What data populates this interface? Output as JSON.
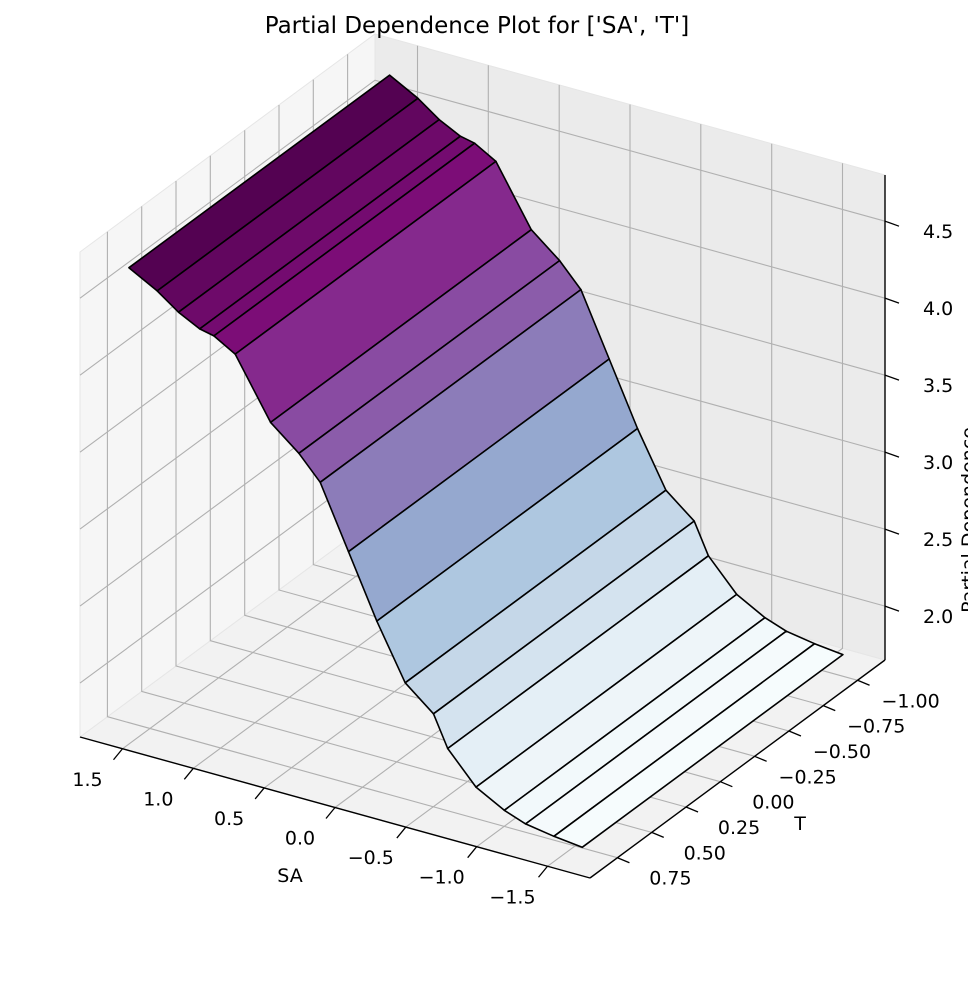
{
  "chart_data": {
    "type": "surface",
    "title": "Partial Dependence Plot for ['SA', 'T']",
    "xlabel": "SA",
    "ylabel": "T",
    "zlabel": "Partial Dependence",
    "xlim": [
      1.8,
      -1.8
    ],
    "ylim": [
      0.95,
      -1.2
    ],
    "zlim": [
      1.65,
      4.8
    ],
    "x_ticks": [
      1.5,
      1.0,
      0.5,
      0.0,
      -0.5,
      -1.0,
      -1.5
    ],
    "x_tick_labels": [
      "1.5",
      "1.0",
      "0.5",
      "0.0",
      "−0.5",
      "−1.0",
      "−1.5"
    ],
    "y_ticks": [
      -1.0,
      -0.75,
      -0.5,
      -0.25,
      0.0,
      0.25,
      0.5,
      0.75
    ],
    "y_tick_labels": [
      "−1.00",
      "−0.75",
      "−0.50",
      "−0.25",
      "0.00",
      "0.25",
      "0.50",
      "0.75"
    ],
    "z_ticks": [
      2.0,
      2.5,
      3.0,
      3.5,
      4.0,
      4.5
    ],
    "z_tick_labels": [
      "2.0",
      "2.5",
      "3.0",
      "3.5",
      "4.0",
      "4.5"
    ],
    "sa_grid": [
      1.6,
      1.4,
      1.25,
      1.1,
      1.0,
      0.85,
      0.6,
      0.4,
      0.25,
      0.05,
      -0.15,
      -0.35,
      -0.55,
      -0.65,
      -0.85,
      -1.05,
      -1.2,
      -1.4,
      -1.6
    ],
    "t_range": [
      -1.1,
      0.8
    ],
    "pd_values": [
      4.65,
      4.55,
      4.45,
      4.38,
      4.36,
      4.28,
      3.9,
      3.75,
      3.6,
      3.2,
      2.8,
      2.45,
      2.3,
      2.1,
      1.9,
      1.8,
      1.75,
      1.72,
      1.7
    ],
    "colormap": [
      "#4d004b",
      "#810f7c",
      "#88419d",
      "#8c6bb1",
      "#8c96c6",
      "#9ebcda",
      "#bfd3e6",
      "#e0ecf4",
      "#f7fcfd"
    ],
    "edge_color": "#000000",
    "grid": true
  }
}
